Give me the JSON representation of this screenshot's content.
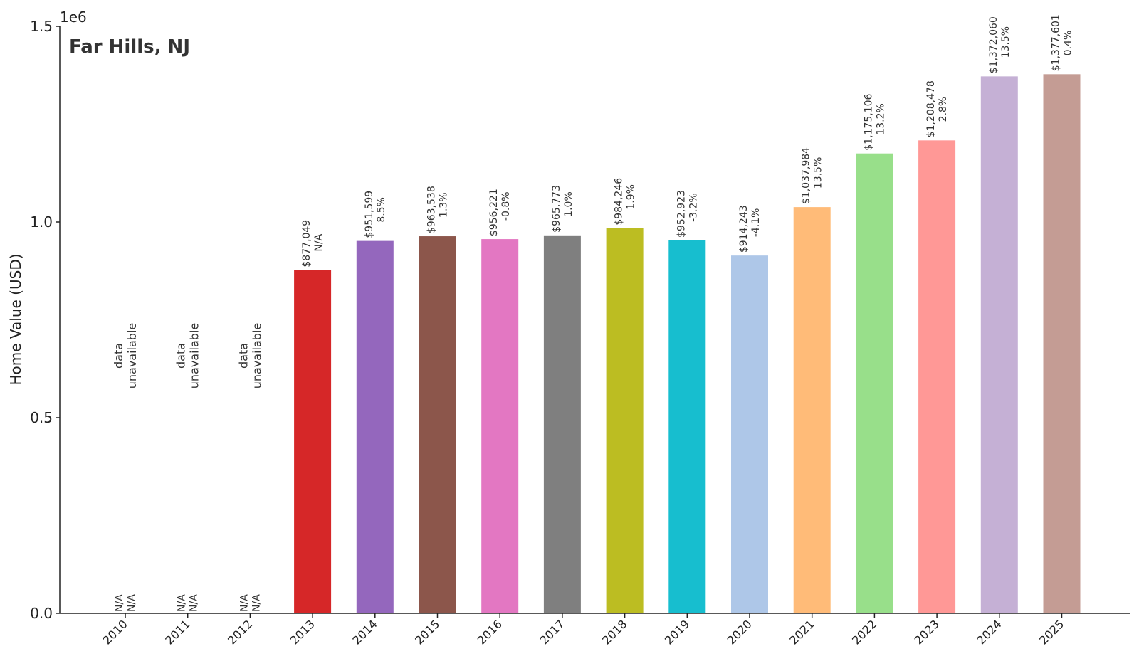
{
  "chart_data": {
    "type": "bar",
    "title": "Far Hills, NJ",
    "xlabel": "",
    "ylabel": "Home Value (USD)",
    "y_offset_label": "1e6",
    "ylim": [
      0,
      1500000
    ],
    "yticks": [
      0,
      500000,
      1000000,
      1500000
    ],
    "ytick_labels": [
      "0.0",
      "0.5",
      "1.0",
      "1.5"
    ],
    "grid": false,
    "unavailable_text": [
      "data",
      "unavailable"
    ],
    "categories": [
      "2010",
      "2011",
      "2012",
      "2013",
      "2014",
      "2015",
      "2016",
      "2017",
      "2018",
      "2019",
      "2020",
      "2021",
      "2022",
      "2023",
      "2024",
      "2025"
    ],
    "values": [
      null,
      null,
      null,
      877049,
      951599,
      963538,
      956221,
      965773,
      984246,
      952923,
      914243,
      1037984,
      1175106,
      1208478,
      1372060,
      1377601
    ],
    "value_labels": [
      "N/A",
      "N/A",
      "N/A",
      "$877,049",
      "$951,599",
      "$963,538",
      "$956,221",
      "$965,773",
      "$984,246",
      "$952,923",
      "$914,243",
      "$1,037,984",
      "$1,175,106",
      "$1,208,478",
      "$1,372,060",
      "$1,377,601"
    ],
    "change_labels": [
      "N/A",
      "N/A",
      "N/A",
      "N/A",
      "8.5%",
      "1.3%",
      "-0.8%",
      "1.0%",
      "1.9%",
      "-3.2%",
      "-4.1%",
      "13.5%",
      "13.2%",
      "2.8%",
      "13.5%",
      "0.4%"
    ],
    "colors": [
      "#1f77b4",
      "#ff7f0e",
      "#2ca02c",
      "#d62728",
      "#9467bd",
      "#8c564b",
      "#e377c2",
      "#7f7f7f",
      "#bcbd22",
      "#17becf",
      "#aec7e8",
      "#ffbb78",
      "#98df8a",
      "#ff9896",
      "#c5b0d5",
      "#c49c94"
    ]
  }
}
